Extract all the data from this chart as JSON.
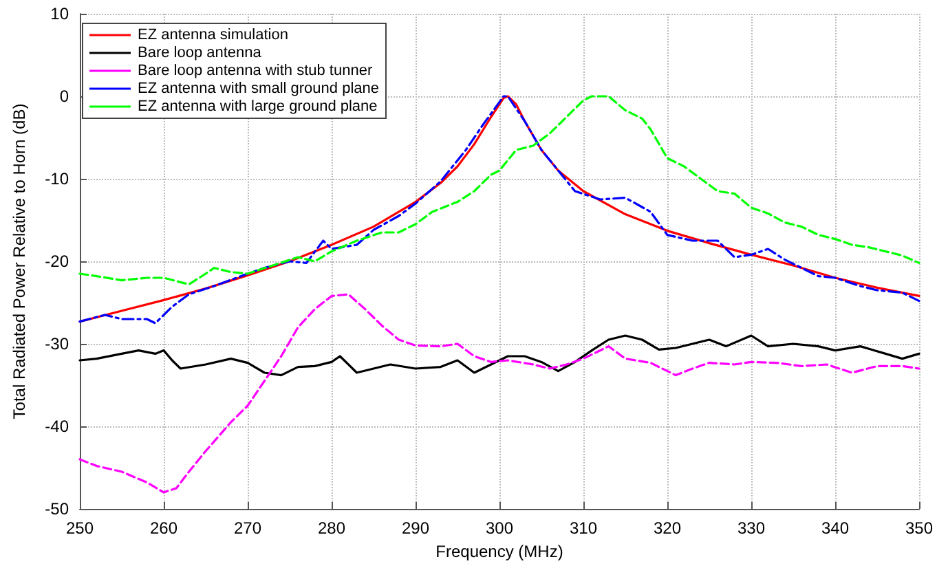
{
  "chart_data": {
    "type": "line",
    "xlabel": "Frequency (MHz)",
    "ylabel": "Total Radiated Power Relative to Horn (dB)",
    "xlim": [
      250,
      350
    ],
    "xticks": [
      250,
      260,
      270,
      280,
      290,
      300,
      310,
      320,
      330,
      340,
      350
    ],
    "ylim": [
      -50,
      10
    ],
    "yticks": [
      -50,
      -40,
      -30,
      -20,
      -10,
      0,
      10
    ],
    "grid": true,
    "legend": "top left",
    "marker": "none",
    "series": [
      {
        "name": "EZ antenna simulation",
        "color": "#ff0000",
        "line_style": "solid",
        "x": [
          250,
          255,
          260,
          265,
          270,
          275,
          280,
          285,
          290,
          293,
          295,
          297,
          299,
          300.5,
          301,
          302,
          303,
          305,
          307,
          310,
          315,
          320,
          325,
          330,
          335,
          340,
          345,
          350
        ],
        "values": [
          -27.3,
          -26,
          -24.7,
          -23.3,
          -21.7,
          -20,
          -18,
          -15.8,
          -12.8,
          -10.5,
          -8.5,
          -5.8,
          -2.5,
          -0.2,
          0,
          -1,
          -3,
          -6.5,
          -9,
          -11.5,
          -14.3,
          -16.3,
          -17.8,
          -19.2,
          -20.5,
          -22,
          -23.2,
          -24.2
        ]
      },
      {
        "name": "Bare loop antenna",
        "color": "#000000",
        "line_style": "solid",
        "x": [
          250,
          252,
          255,
          257,
          259,
          260,
          261,
          262,
          265,
          268,
          270,
          272,
          274,
          276,
          278,
          280,
          281,
          283,
          285,
          287,
          290,
          293,
          295,
          297,
          299,
          301,
          303,
          305,
          307,
          309,
          311,
          313,
          315,
          317,
          319,
          321,
          323,
          325,
          327,
          330,
          332,
          335,
          338,
          340,
          343,
          346,
          348,
          350
        ],
        "values": [
          -32,
          -31.8,
          -31.2,
          -30.8,
          -31.2,
          -30.8,
          -32,
          -33,
          -32.5,
          -31.8,
          -32.3,
          -33.5,
          -33.8,
          -32.8,
          -32.7,
          -32.2,
          -31.5,
          -33.5,
          -33,
          -32.5,
          -33,
          -32.8,
          -32,
          -33.5,
          -32.5,
          -31.5,
          -31.5,
          -32.2,
          -33.3,
          -32.2,
          -30.8,
          -29.5,
          -29,
          -29.5,
          -30.7,
          -30.5,
          -30,
          -29.5,
          -30.3,
          -29,
          -30.3,
          -30,
          -30.3,
          -30.8,
          -30.3,
          -31.2,
          -31.8,
          -31.2
        ]
      },
      {
        "name": "Bare loop antenna with stub tunner",
        "color": "#ff00ff",
        "line_style": "dashed",
        "x": [
          250,
          252,
          255,
          258,
          260,
          261.5,
          263,
          265,
          268,
          270,
          272,
          274,
          276,
          278,
          280,
          282,
          284,
          286,
          288,
          290,
          293,
          295,
          297,
          299,
          301,
          304,
          306,
          308,
          310,
          313,
          315,
          318,
          321,
          323,
          325,
          328,
          330,
          333,
          336,
          339,
          342,
          345,
          348,
          350
        ],
        "values": [
          -44,
          -44.8,
          -45.5,
          -46.8,
          -48,
          -47.5,
          -45.5,
          -43,
          -39.5,
          -37.5,
          -34.5,
          -31.5,
          -28,
          -25.8,
          -24.2,
          -24,
          -25.8,
          -27.8,
          -29.5,
          -30.2,
          -30.3,
          -30,
          -31.5,
          -32.2,
          -32,
          -32.5,
          -33,
          -32.5,
          -31.8,
          -30.3,
          -31.8,
          -32.3,
          -33.8,
          -33,
          -32.3,
          -32.5,
          -32.2,
          -32.3,
          -32.7,
          -32.5,
          -33.5,
          -32.7,
          -32.7,
          -33
        ]
      },
      {
        "name": "EZ antenna with small ground plane",
        "color": "#0000ff",
        "line_style": "dashdot",
        "x": [
          250,
          253,
          255,
          258,
          259,
          261,
          263,
          266,
          270,
          272,
          275,
          277,
          279,
          280,
          283,
          285,
          288,
          290,
          293,
          296,
          298,
          300.5,
          301,
          303,
          305,
          307,
          309,
          312,
          315,
          318,
          320,
          323,
          326,
          328,
          330,
          332,
          334,
          338,
          340,
          343,
          345,
          348,
          350
        ],
        "values": [
          -27.3,
          -26.5,
          -27,
          -27,
          -27.5,
          -25.5,
          -24,
          -23,
          -21.5,
          -20.8,
          -20,
          -20.2,
          -17.5,
          -18.5,
          -18,
          -16.2,
          -14.5,
          -13,
          -10.3,
          -6.5,
          -3.5,
          0,
          0,
          -3,
          -6.5,
          -9,
          -11.5,
          -12.5,
          -12.3,
          -14,
          -16.8,
          -17.5,
          -17.5,
          -19.5,
          -19.2,
          -18.5,
          -19.8,
          -21.8,
          -22,
          -23,
          -23.5,
          -23.8,
          -24.8
        ]
      },
      {
        "name": "EZ antenna with large ground plane",
        "color": "#00ff00",
        "line_style": "dashed",
        "x": [
          250,
          252,
          255,
          258,
          260,
          263,
          265,
          266,
          268,
          270,
          273,
          276,
          278,
          280,
          283,
          286,
          288,
          290,
          292,
          295,
          297,
          299,
          300,
          302,
          304,
          306,
          308,
          310,
          311,
          313,
          315,
          317,
          318,
          320,
          322,
          324,
          326,
          328,
          330,
          332,
          334,
          336,
          338,
          340,
          342,
          344,
          346,
          348,
          350
        ],
        "values": [
          -21.5,
          -21.8,
          -22.3,
          -22,
          -22,
          -22.8,
          -21.5,
          -20.8,
          -21.3,
          -21.5,
          -20.5,
          -19.5,
          -20,
          -18.8,
          -17.5,
          -16.5,
          -16.5,
          -15.5,
          -14,
          -12.8,
          -11.5,
          -9.5,
          -9,
          -6.5,
          -6,
          -4.5,
          -2.5,
          -0.5,
          0,
          0,
          -1.7,
          -2.7,
          -4,
          -7.5,
          -8.5,
          -10,
          -11.5,
          -11.8,
          -13.5,
          -14.2,
          -15.3,
          -15.8,
          -16.8,
          -17.3,
          -18,
          -18.3,
          -18.8,
          -19.3,
          -20.2
        ]
      }
    ]
  }
}
